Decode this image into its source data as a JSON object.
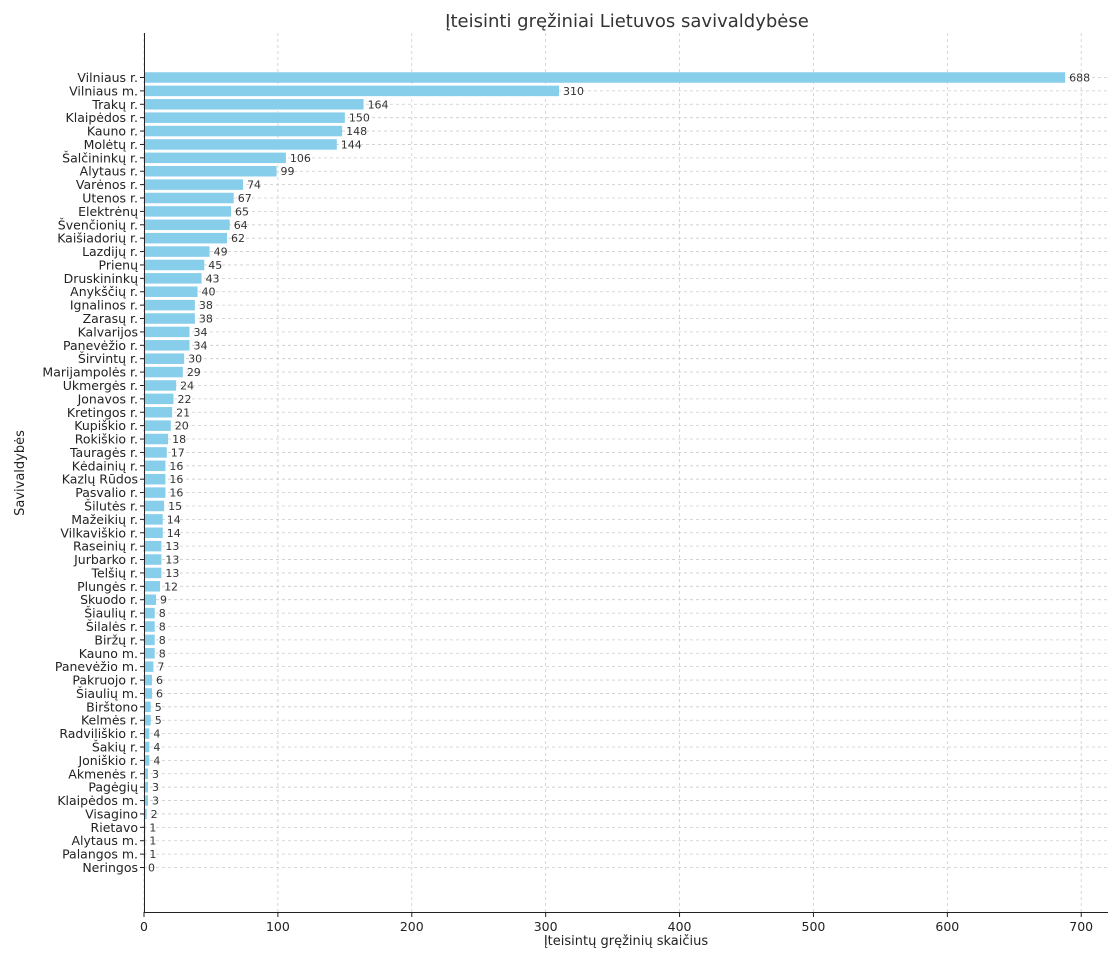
{
  "chart_data": {
    "type": "bar",
    "orientation": "horizontal",
    "title": "Įteisinti gręžiniai Lietuvos savivaldybėse",
    "xlabel": "Įteisintų gręžinių skaičius",
    "ylabel": "Savivaldybės",
    "xlim": [
      0,
      720
    ],
    "xticks": [
      0,
      100,
      200,
      300,
      400,
      500,
      600,
      700
    ],
    "grid": true,
    "bar_color": "#87CEEB",
    "categories": [
      "Vilniaus r.",
      "Vilniaus m.",
      "Trakų r.",
      "Klaipėdos r.",
      "Kauno r.",
      "Molėtų r.",
      "Šalčininkų r.",
      "Alytaus r.",
      "Varėnos r.",
      "Utenos r.",
      "Elektrėnų",
      "Švenčionių r.",
      "Kaišiadorių r.",
      "Lazdijų r.",
      "Prienų",
      "Druskininkų",
      "Anykščių r.",
      "Ignalinos r.",
      "Zarasų r.",
      "Kalvarijos",
      "Panevėžio r.",
      "Širvintų r.",
      "Marijampolės r.",
      "Ukmergės r.",
      "Jonavos r.",
      "Kretingos r.",
      "Kupiškio r.",
      "Rokiškio r.",
      "Tauragės r.",
      "Kėdainių r.",
      "Kazlų Rūdos",
      "Pasvalio r.",
      "Šilutės r.",
      "Mažeikių r.",
      "Vilkaviškio r.",
      "Raseinių r.",
      "Jurbarko r.",
      "Telšių r.",
      "Plungės r.",
      "Skuodo r.",
      "Šiaulių r.",
      "Šilalės r.",
      "Biržų r.",
      "Kauno m.",
      "Panevėžio m.",
      "Pakruojo r.",
      "Šiaulių m.",
      "Birštono",
      "Kelmės r.",
      "Radviliškio r.",
      "Šakių r.",
      "Joniškio r.",
      "Akmenės r.",
      "Pagėgių",
      "Klaipėdos m.",
      "Visagino",
      "Rietavo",
      "Alytaus m.",
      "Palangos m.",
      "Neringos"
    ],
    "values": [
      688,
      310,
      164,
      150,
      148,
      144,
      106,
      99,
      74,
      67,
      65,
      64,
      62,
      49,
      45,
      43,
      40,
      38,
      38,
      34,
      34,
      30,
      29,
      24,
      22,
      21,
      20,
      18,
      17,
      16,
      16,
      16,
      15,
      14,
      14,
      13,
      13,
      13,
      12,
      9,
      8,
      8,
      8,
      8,
      7,
      6,
      6,
      5,
      5,
      4,
      4,
      4,
      3,
      3,
      3,
      2,
      1,
      1,
      1,
      0
    ]
  }
}
